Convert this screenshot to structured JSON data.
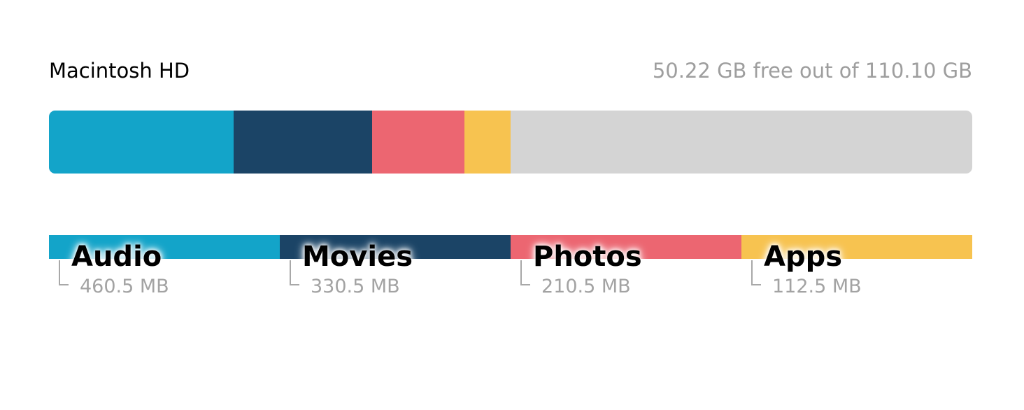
{
  "disk": {
    "name": "Macintosh HD",
    "free_text": "50.22 GB free out of 110.10 GB"
  },
  "usage_bar": {
    "background_color": "#d4d4d4",
    "segments": [
      {
        "category": "Audio",
        "fraction": 0.2,
        "color": "#13a4c9"
      },
      {
        "category": "Movies",
        "fraction": 0.15,
        "color": "#1b4466"
      },
      {
        "category": "Photos",
        "fraction": 0.1,
        "color": "#ec6671"
      },
      {
        "category": "Apps",
        "fraction": 0.05,
        "color": "#f7c350"
      }
    ]
  },
  "legend": [
    {
      "label": "Audio",
      "size": "460.5 MB",
      "color": "#13a4c9"
    },
    {
      "label": "Movies",
      "size": "330.5 MB",
      "color": "#1b4466"
    },
    {
      "label": "Photos",
      "size": "210.5 MB",
      "color": "#ec6671"
    },
    {
      "label": "Apps",
      "size": "112.5 MB",
      "color": "#f7c350"
    }
  ]
}
